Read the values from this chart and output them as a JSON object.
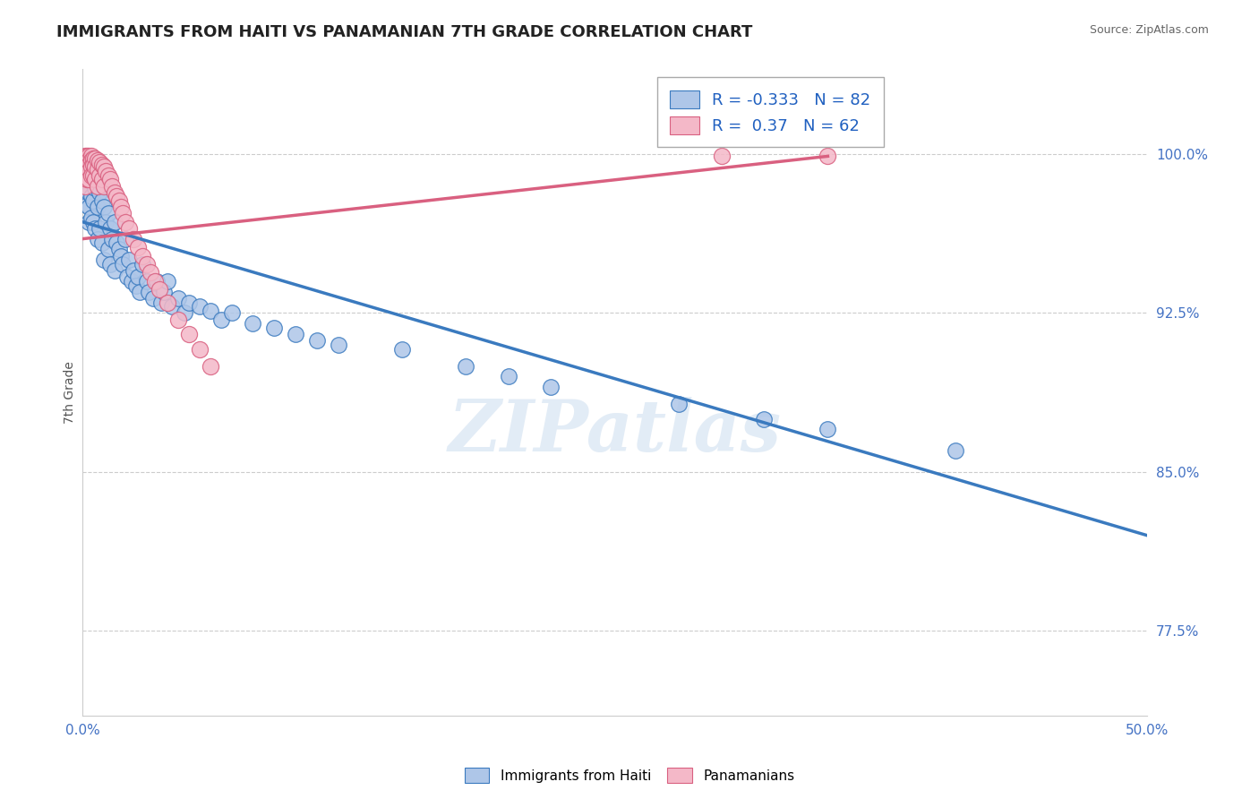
{
  "title": "IMMIGRANTS FROM HAITI VS PANAMANIAN 7TH GRADE CORRELATION CHART",
  "source": "Source: ZipAtlas.com",
  "ylabel": "7th Grade",
  "y_tick_labels": [
    "77.5%",
    "85.0%",
    "92.5%",
    "100.0%"
  ],
  "y_tick_values": [
    0.775,
    0.85,
    0.925,
    1.0
  ],
  "xlim": [
    0.0,
    0.5
  ],
  "ylim": [
    0.735,
    1.04
  ],
  "blue_R": -0.333,
  "blue_N": 82,
  "pink_R": 0.37,
  "pink_N": 62,
  "blue_color": "#aec6e8",
  "blue_edge_color": "#3a7abf",
  "pink_color": "#f4b8c8",
  "pink_edge_color": "#d96080",
  "watermark": "ZIPatlas",
  "legend_label_blue": "Immigrants from Haiti",
  "legend_label_pink": "Panamanians",
  "blue_scatter_x": [
    0.001,
    0.001,
    0.001,
    0.002,
    0.002,
    0.002,
    0.002,
    0.003,
    0.003,
    0.003,
    0.003,
    0.003,
    0.003,
    0.004,
    0.004,
    0.004,
    0.004,
    0.005,
    0.005,
    0.005,
    0.005,
    0.006,
    0.006,
    0.006,
    0.007,
    0.007,
    0.007,
    0.008,
    0.008,
    0.009,
    0.009,
    0.01,
    0.01,
    0.011,
    0.012,
    0.012,
    0.013,
    0.013,
    0.014,
    0.015,
    0.015,
    0.016,
    0.017,
    0.018,
    0.019,
    0.02,
    0.021,
    0.022,
    0.023,
    0.024,
    0.025,
    0.026,
    0.027,
    0.028,
    0.03,
    0.031,
    0.033,
    0.035,
    0.037,
    0.038,
    0.04,
    0.042,
    0.045,
    0.048,
    0.05,
    0.055,
    0.06,
    0.065,
    0.07,
    0.08,
    0.09,
    0.1,
    0.11,
    0.12,
    0.15,
    0.18,
    0.2,
    0.22,
    0.28,
    0.32,
    0.35,
    0.41
  ],
  "blue_scatter_y": [
    0.998,
    0.992,
    0.985,
    0.997,
    0.99,
    0.983,
    0.976,
    0.998,
    0.993,
    0.988,
    0.982,
    0.975,
    0.968,
    0.996,
    0.989,
    0.98,
    0.97,
    0.994,
    0.986,
    0.978,
    0.968,
    0.992,
    0.984,
    0.965,
    0.988,
    0.975,
    0.96,
    0.982,
    0.965,
    0.978,
    0.958,
    0.975,
    0.95,
    0.968,
    0.972,
    0.955,
    0.965,
    0.948,
    0.96,
    0.968,
    0.945,
    0.958,
    0.955,
    0.952,
    0.948,
    0.96,
    0.942,
    0.95,
    0.94,
    0.945,
    0.938,
    0.942,
    0.935,
    0.948,
    0.94,
    0.935,
    0.932,
    0.94,
    0.93,
    0.935,
    0.94,
    0.928,
    0.932,
    0.925,
    0.93,
    0.928,
    0.926,
    0.922,
    0.925,
    0.92,
    0.918,
    0.915,
    0.912,
    0.91,
    0.908,
    0.9,
    0.895,
    0.89,
    0.882,
    0.875,
    0.87,
    0.86
  ],
  "pink_scatter_x": [
    0.001,
    0.001,
    0.001,
    0.001,
    0.001,
    0.001,
    0.001,
    0.001,
    0.002,
    0.002,
    0.002,
    0.002,
    0.002,
    0.003,
    0.003,
    0.003,
    0.003,
    0.003,
    0.004,
    0.004,
    0.004,
    0.004,
    0.005,
    0.005,
    0.005,
    0.006,
    0.006,
    0.006,
    0.007,
    0.007,
    0.007,
    0.008,
    0.008,
    0.009,
    0.009,
    0.01,
    0.01,
    0.011,
    0.012,
    0.013,
    0.014,
    0.015,
    0.016,
    0.017,
    0.018,
    0.019,
    0.02,
    0.022,
    0.024,
    0.026,
    0.028,
    0.03,
    0.032,
    0.034,
    0.036,
    0.04,
    0.045,
    0.05,
    0.055,
    0.06,
    0.3,
    0.35
  ],
  "pink_scatter_y": [
    0.999,
    0.997,
    0.996,
    0.994,
    0.993,
    0.991,
    0.988,
    0.985,
    0.999,
    0.997,
    0.995,
    0.992,
    0.988,
    0.999,
    0.997,
    0.995,
    0.992,
    0.988,
    0.999,
    0.997,
    0.994,
    0.99,
    0.998,
    0.995,
    0.99,
    0.998,
    0.994,
    0.988,
    0.997,
    0.993,
    0.985,
    0.996,
    0.99,
    0.995,
    0.988,
    0.994,
    0.985,
    0.992,
    0.99,
    0.988,
    0.985,
    0.982,
    0.98,
    0.978,
    0.975,
    0.972,
    0.968,
    0.965,
    0.96,
    0.956,
    0.952,
    0.948,
    0.944,
    0.94,
    0.936,
    0.93,
    0.922,
    0.915,
    0.908,
    0.9,
    0.999,
    0.999
  ],
  "blue_trendline_x": [
    0.0,
    0.5
  ],
  "blue_trendline_y": [
    0.968,
    0.82
  ],
  "pink_trendline_x": [
    0.0,
    0.35
  ],
  "pink_trendline_y": [
    0.96,
    0.999
  ],
  "background_color": "#ffffff",
  "grid_color": "#cccccc",
  "title_color": "#222222",
  "axis_color": "#4472c4",
  "title_fontsize": 13,
  "label_fontsize": 10
}
